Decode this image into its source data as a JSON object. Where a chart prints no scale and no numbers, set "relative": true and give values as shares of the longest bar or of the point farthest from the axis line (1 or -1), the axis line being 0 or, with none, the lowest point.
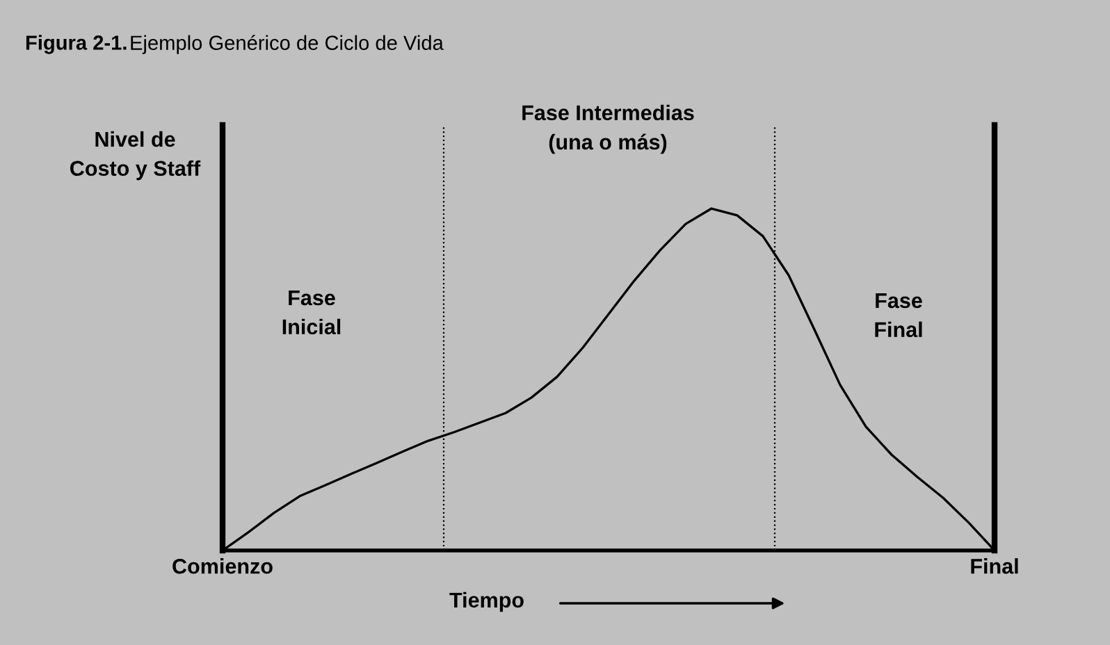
{
  "chart_data": {
    "type": "line",
    "title": "Figura 2-1.",
    "subtitle": "Ejemplo Genérico de Ciclo de Vida",
    "xlabel": "Tiempo",
    "ylabel": "Nivel de\nCosto y Staff",
    "categories": [
      "Comienzo",
      null,
      null,
      null,
      null,
      null,
      null,
      null,
      null,
      null,
      null,
      null,
      null,
      null,
      null,
      null,
      null,
      null,
      null,
      null,
      null,
      null,
      null,
      null,
      null,
      null,
      null,
      null,
      null,
      null,
      "Final"
    ],
    "values": [
      0,
      0.053,
      0.11,
      0.159,
      0.191,
      0.224,
      0.256,
      0.289,
      0.321,
      0.346,
      0.374,
      0.402,
      0.447,
      0.508,
      0.593,
      0.691,
      0.789,
      0.878,
      0.955,
      1.0,
      0.98,
      0.919,
      0.805,
      0.646,
      0.484,
      0.362,
      0.28,
      0.215,
      0.154,
      0.081,
      0
    ],
    "color": "#000000",
    "relative": true,
    "annotations": [
      "Fase\nInicial",
      "Fase Intermedias\n(una o más)",
      "Fase\nFinal"
    ],
    "marker": "none",
    "line_style": "solid"
  }
}
